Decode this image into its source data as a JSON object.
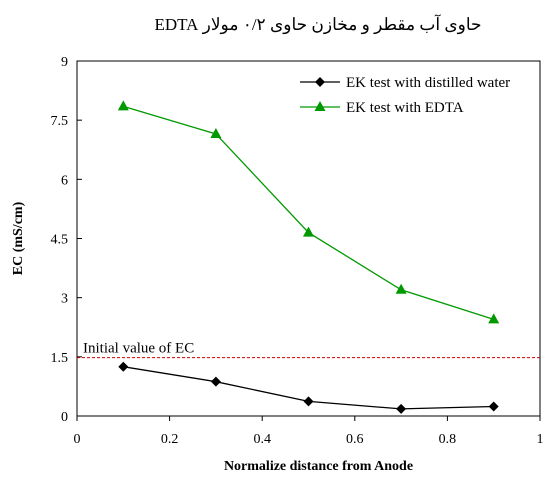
{
  "chart_data": {
    "type": "line",
    "title": "حاوی آب مقطر و مخازن حاوی ۰/۲ مولار EDTA",
    "xlabel": "Normalize distance from Anode",
    "ylabel": "EC (mS/cm)",
    "xlim": [
      0,
      1
    ],
    "ylim": [
      0,
      9
    ],
    "x_ticks": [
      "0",
      "0.2",
      "0.4",
      "0.6",
      "0.8",
      "1"
    ],
    "y_ticks": [
      "0",
      "1.5",
      "3",
      "4.5",
      "6",
      "7.5",
      "9"
    ],
    "grid": false,
    "legend_position": "top-right",
    "series": [
      {
        "name": "EK test with distilled water",
        "color": "#000000",
        "marker": "diamond",
        "x": [
          0.1,
          0.3,
          0.5,
          0.7,
          0.9
        ],
        "y": [
          1.25,
          0.87,
          0.37,
          0.18,
          0.24
        ]
      },
      {
        "name": "EK test with EDTA",
        "color": "#009900",
        "marker": "triangle",
        "x": [
          0.1,
          0.3,
          0.5,
          0.7,
          0.9
        ],
        "y": [
          7.85,
          7.15,
          4.65,
          3.2,
          2.45
        ]
      }
    ],
    "reference_line": {
      "label": "Initial value of EC",
      "y": 1.48,
      "color": "#cc0000",
      "style": "dashed"
    }
  }
}
